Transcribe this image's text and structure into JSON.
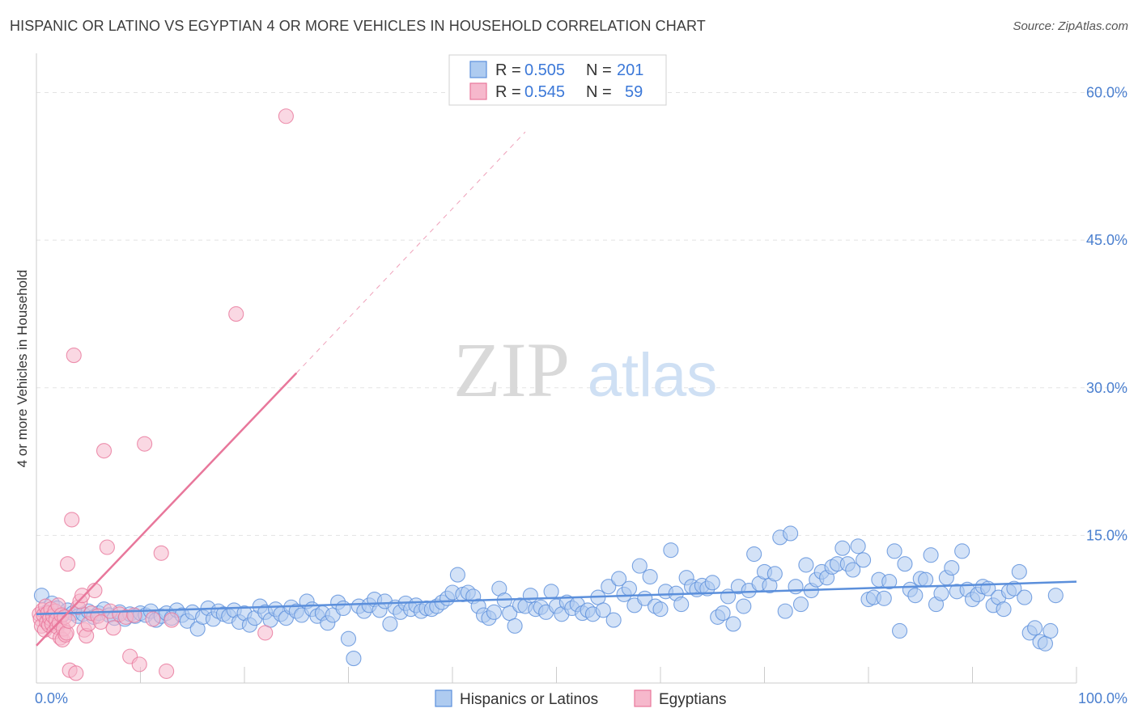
{
  "title": "HISPANIC OR LATINO VS EGYPTIAN 4 OR MORE VEHICLES IN HOUSEHOLD CORRELATION CHART",
  "source": "Source: ZipAtlas.com",
  "watermark": {
    "zip": "ZIP",
    "atlas": "atlas"
  },
  "chart_data": {
    "type": "scatter",
    "ylabel": "4 or more Vehicles in Household",
    "xlim": [
      0,
      100
    ],
    "ylim": [
      0,
      63
    ],
    "x_tick_labels": [
      "0.0%",
      "100.0%"
    ],
    "y_ticks": [
      15,
      30,
      45,
      60
    ],
    "y_tick_labels": [
      "15.0%",
      "30.0%",
      "45.0%",
      "60.0%"
    ],
    "grid": true,
    "legend_position": "top-center",
    "series": [
      {
        "name": "Hispanics or Latinos",
        "color": "#5b8fdb",
        "fill": "#aecbf0",
        "R": "0.505",
        "N": "201",
        "trend": {
          "x": [
            0,
            100
          ],
          "y": [
            7.0,
            10.3
          ]
        },
        "points": [
          [
            0.5,
            8.9
          ],
          [
            1,
            7.2
          ],
          [
            1.5,
            8.1
          ],
          [
            2,
            7.6
          ],
          [
            2.5,
            6.9
          ],
          [
            3,
            7.4
          ],
          [
            3.5,
            7.1
          ],
          [
            4,
            6.8
          ],
          [
            4.5,
            7.0
          ],
          [
            5,
            7.3
          ],
          [
            5.5,
            6.7
          ],
          [
            6,
            7.1
          ],
          [
            6.5,
            7.5
          ],
          [
            7,
            6.9
          ],
          [
            7.5,
            6.6
          ],
          [
            8,
            7.2
          ],
          [
            8.5,
            6.5
          ],
          [
            9,
            7.0
          ],
          [
            9.5,
            6.8
          ],
          [
            10,
            7.1
          ],
          [
            10.5,
            6.9
          ],
          [
            11,
            7.3
          ],
          [
            11.5,
            6.4
          ],
          [
            12,
            6.8
          ],
          [
            12.5,
            7.1
          ],
          [
            13,
            6.6
          ],
          [
            13.5,
            7.4
          ],
          [
            14,
            6.9
          ],
          [
            14.5,
            6.3
          ],
          [
            15,
            7.2
          ],
          [
            15.5,
            5.5
          ],
          [
            16,
            6.7
          ],
          [
            16.5,
            7.6
          ],
          [
            17,
            6.5
          ],
          [
            17.5,
            7.3
          ],
          [
            18,
            7.0
          ],
          [
            18.5,
            6.8
          ],
          [
            19,
            7.4
          ],
          [
            19.5,
            6.2
          ],
          [
            20,
            7.1
          ],
          [
            20.5,
            5.9
          ],
          [
            21,
            6.6
          ],
          [
            21.5,
            7.8
          ],
          [
            22,
            7.2
          ],
          [
            22.5,
            6.4
          ],
          [
            23,
            7.5
          ],
          [
            23.5,
            7.0
          ],
          [
            24,
            6.6
          ],
          [
            24.5,
            7.7
          ],
          [
            25,
            7.3
          ],
          [
            25.5,
            6.9
          ],
          [
            26,
            8.3
          ],
          [
            26.5,
            7.5
          ],
          [
            27,
            6.8
          ],
          [
            27.5,
            7.1
          ],
          [
            28,
            6.1
          ],
          [
            28.5,
            6.9
          ],
          [
            29,
            8.2
          ],
          [
            29.5,
            7.6
          ],
          [
            30,
            4.5
          ],
          [
            30.5,
            2.5
          ],
          [
            31,
            7.8
          ],
          [
            31.5,
            7.3
          ],
          [
            32,
            7.9
          ],
          [
            32.5,
            8.5
          ],
          [
            33,
            7.4
          ],
          [
            33.5,
            8.3
          ],
          [
            34,
            6.0
          ],
          [
            34.5,
            7.7
          ],
          [
            35,
            7.2
          ],
          [
            35.5,
            8.1
          ],
          [
            36,
            7.5
          ],
          [
            36.5,
            7.9
          ],
          [
            37,
            7.3
          ],
          [
            37.5,
            7.6
          ],
          [
            38,
            7.5
          ],
          [
            38.5,
            7.8
          ],
          [
            39,
            8.2
          ],
          [
            39.5,
            8.6
          ],
          [
            40,
            9.2
          ],
          [
            40.5,
            11.0
          ],
          [
            41,
            9.0
          ],
          [
            41.5,
            9.2
          ],
          [
            42,
            8.8
          ],
          [
            42.5,
            7.8
          ],
          [
            43,
            6.9
          ],
          [
            43.5,
            6.6
          ],
          [
            44,
            7.2
          ],
          [
            44.5,
            9.6
          ],
          [
            45,
            8.4
          ],
          [
            45.5,
            7.1
          ],
          [
            46,
            5.8
          ],
          [
            46.5,
            7.9
          ],
          [
            47,
            7.8
          ],
          [
            47.5,
            8.9
          ],
          [
            48,
            7.5
          ],
          [
            48.5,
            7.7
          ],
          [
            49,
            7.2
          ],
          [
            49.5,
            9.3
          ],
          [
            50,
            7.8
          ],
          [
            50.5,
            7.0
          ],
          [
            51,
            8.2
          ],
          [
            51.5,
            7.6
          ],
          [
            52,
            8.0
          ],
          [
            52.5,
            7.1
          ],
          [
            53,
            7.4
          ],
          [
            53.5,
            7.0
          ],
          [
            54,
            8.7
          ],
          [
            54.5,
            7.4
          ],
          [
            55,
            9.8
          ],
          [
            55.5,
            6.4
          ],
          [
            56,
            10.6
          ],
          [
            56.5,
            9.0
          ],
          [
            57,
            9.6
          ],
          [
            57.5,
            7.9
          ],
          [
            58,
            11.9
          ],
          [
            58.5,
            8.6
          ],
          [
            59,
            10.8
          ],
          [
            59.5,
            7.8
          ],
          [
            60,
            7.5
          ],
          [
            60.5,
            9.3
          ],
          [
            61,
            13.5
          ],
          [
            61.5,
            9.1
          ],
          [
            62,
            8.0
          ],
          [
            62.5,
            10.7
          ],
          [
            63,
            9.8
          ],
          [
            63.5,
            9.5
          ],
          [
            64,
            9.9
          ],
          [
            64.5,
            9.6
          ],
          [
            65,
            10.2
          ],
          [
            65.5,
            6.7
          ],
          [
            66,
            7.1
          ],
          [
            66.5,
            8.8
          ],
          [
            67,
            6.0
          ],
          [
            67.5,
            9.8
          ],
          [
            68,
            7.8
          ],
          [
            68.5,
            9.4
          ],
          [
            69,
            13.1
          ],
          [
            69.5,
            10.1
          ],
          [
            70,
            11.3
          ],
          [
            70.5,
            9.9
          ],
          [
            71,
            11.1
          ],
          [
            71.5,
            14.8
          ],
          [
            72,
            7.3
          ],
          [
            72.5,
            15.2
          ],
          [
            73,
            9.8
          ],
          [
            73.5,
            8.0
          ],
          [
            74,
            12.0
          ],
          [
            74.5,
            9.4
          ],
          [
            75,
            10.5
          ],
          [
            75.5,
            11.3
          ],
          [
            76,
            10.7
          ],
          [
            76.5,
            11.8
          ],
          [
            77,
            12.1
          ],
          [
            77.5,
            13.7
          ],
          [
            78,
            12.1
          ],
          [
            78.5,
            11.5
          ],
          [
            79,
            13.9
          ],
          [
            79.5,
            12.5
          ],
          [
            80,
            8.5
          ],
          [
            80.5,
            8.7
          ],
          [
            81,
            10.5
          ],
          [
            81.5,
            8.6
          ],
          [
            82,
            10.3
          ],
          [
            82.5,
            13.4
          ],
          [
            83,
            5.3
          ],
          [
            83.5,
            12.1
          ],
          [
            84,
            9.5
          ],
          [
            84.5,
            8.9
          ],
          [
            85,
            10.6
          ],
          [
            85.5,
            10.5
          ],
          [
            86,
            13.0
          ],
          [
            86.5,
            8.0
          ],
          [
            87,
            9.1
          ],
          [
            87.5,
            10.7
          ],
          [
            88,
            11.7
          ],
          [
            88.5,
            9.3
          ],
          [
            89,
            13.4
          ],
          [
            89.5,
            9.5
          ],
          [
            90,
            8.5
          ],
          [
            90.5,
            9.0
          ],
          [
            91,
            9.8
          ],
          [
            91.5,
            9.6
          ],
          [
            92,
            7.9
          ],
          [
            92.5,
            8.7
          ],
          [
            93,
            7.5
          ],
          [
            93.5,
            9.3
          ],
          [
            94,
            9.6
          ],
          [
            94.5,
            11.3
          ],
          [
            95,
            8.7
          ],
          [
            95.5,
            5.1
          ],
          [
            96,
            5.6
          ],
          [
            96.5,
            4.2
          ],
          [
            97,
            4.0
          ],
          [
            97.5,
            5.3
          ],
          [
            98,
            8.9
          ]
        ]
      },
      {
        "name": "Egyptians",
        "color": "#e8779b",
        "fill": "#f6b8cc",
        "R": "0.545",
        "N": "59",
        "trend": {
          "x": [
            0,
            25
          ],
          "y": [
            3.8,
            31.5
          ]
        },
        "trend_dashed": {
          "x": [
            25,
            47
          ],
          "y": [
            31.5,
            56.0
          ]
        },
        "points": [
          [
            0.3,
            7.0
          ],
          [
            0.4,
            6.5
          ],
          [
            0.5,
            5.8
          ],
          [
            0.6,
            7.4
          ],
          [
            0.7,
            6.9
          ],
          [
            0.8,
            5.4
          ],
          [
            0.9,
            7.8
          ],
          [
            1.0,
            6.2
          ],
          [
            1.1,
            7.1
          ],
          [
            1.2,
            5.9
          ],
          [
            1.3,
            6.6
          ],
          [
            1.4,
            7.5
          ],
          [
            1.5,
            6.0
          ],
          [
            1.6,
            6.8
          ],
          [
            1.7,
            5.2
          ],
          [
            1.8,
            7.3
          ],
          [
            1.9,
            6.4
          ],
          [
            2.0,
            5.7
          ],
          [
            2.1,
            7.9
          ],
          [
            2.2,
            6.1
          ],
          [
            2.3,
            4.6
          ],
          [
            2.4,
            6.9
          ],
          [
            2.5,
            4.4
          ],
          [
            2.6,
            5.5
          ],
          [
            2.7,
            6.7
          ],
          [
            2.8,
            4.9
          ],
          [
            2.9,
            5.1
          ],
          [
            3.0,
            12.1
          ],
          [
            3.1,
            6.3
          ],
          [
            3.2,
            1.3
          ],
          [
            3.4,
            16.6
          ],
          [
            3.6,
            33.3
          ],
          [
            3.8,
            1.0
          ],
          [
            4.0,
            7.7
          ],
          [
            4.2,
            8.3
          ],
          [
            4.4,
            8.9
          ],
          [
            4.6,
            5.4
          ],
          [
            4.8,
            4.8
          ],
          [
            5.0,
            6.0
          ],
          [
            5.3,
            7.1
          ],
          [
            5.6,
            9.4
          ],
          [
            5.9,
            6.8
          ],
          [
            6.2,
            6.2
          ],
          [
            6.5,
            23.6
          ],
          [
            6.8,
            13.8
          ],
          [
            7.1,
            7.3
          ],
          [
            7.4,
            5.6
          ],
          [
            8.0,
            7.0
          ],
          [
            8.6,
            6.7
          ],
          [
            9.0,
            2.7
          ],
          [
            9.4,
            6.9
          ],
          [
            9.9,
            1.9
          ],
          [
            10.4,
            24.3
          ],
          [
            11.2,
            6.5
          ],
          [
            12.0,
            13.2
          ],
          [
            12.5,
            1.2
          ],
          [
            13.0,
            6.4
          ],
          [
            19.2,
            37.5
          ],
          [
            22.0,
            5.1
          ],
          [
            24.0,
            57.6
          ]
        ]
      }
    ]
  }
}
